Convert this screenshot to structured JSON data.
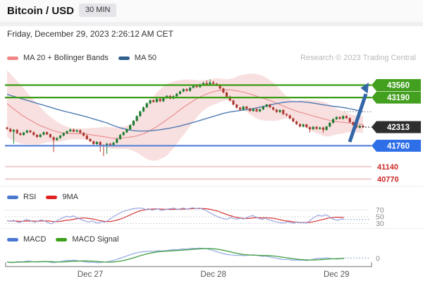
{
  "header": {
    "title": "Bitcoin / USD",
    "timeframe": "30 MIN",
    "datetime": "Friday, December 29, 2023 2:26:12 AM CET",
    "watermark": "Research © 2023 Trading Central"
  },
  "legends": {
    "main": [
      {
        "label": "MA 20 + Bollinger Bands",
        "color": "#ef8585"
      },
      {
        "label": "MA 50",
        "color": "#31608f"
      }
    ],
    "rsi": [
      {
        "label": "RSI",
        "color": "#4a77cf"
      },
      {
        "label": "9MA",
        "color": "#e02222"
      }
    ],
    "macd": [
      {
        "label": "MACD",
        "color": "#4a77cf"
      },
      {
        "label": "MACD Signal",
        "color": "#3da01a"
      }
    ]
  },
  "colors": {
    "candle_up": "#1e7d32",
    "candle_down": "#ad3a32",
    "ma20": "#e89090",
    "ma50": "#4f7bb2",
    "boll_fill": "#f6d3d3",
    "level_green": "#3a9d15",
    "level_blue": "#5f86d8",
    "level_red_line": "#e9a9a9",
    "level_red_text": "#cc2626",
    "badge_green": "#43a01f",
    "badge_black": "#2e2e2e",
    "badge_blue": "#2e6fe8",
    "badge_text": "#ffffff",
    "arrow": "#3467a8",
    "rsi_line": "#8f9fdf",
    "rsi_ma": "#d63434",
    "macd_line": "#8fa8df",
    "macd_signal": "#4ba34b",
    "grid_dot": "#c9c9c9",
    "axis": "#9a9a9a",
    "axis_text": "#555555",
    "panel_label": "#8a8a8a",
    "ext_blue": "#7f99d9",
    "ext_gray": "#999999",
    "ext_black": "#222222"
  },
  "levels": {
    "resistance": [
      43560,
      43190
    ],
    "last_price": 42313,
    "support_blue": 41760,
    "support_red": [
      41140,
      40770
    ]
  },
  "rsi_ticks": [
    70,
    50,
    30
  ],
  "macd_zero_label": "0",
  "x_ticks": [
    {
      "label": "Dec 27",
      "i": 25
    },
    {
      "label": "Dec 28",
      "i": 62
    },
    {
      "label": "Dec 29",
      "i": 99
    }
  ],
  "chart_data": {
    "type": "candlestick-multi-panel",
    "symbol": "Bitcoin / USD",
    "interval": "30 MIN",
    "price_panel": {
      "open0": 42300,
      "pre_closes": [
        43700,
        43685,
        43670,
        43655,
        43640,
        43625,
        43610,
        43595,
        43580,
        43565,
        43550,
        43535,
        43520,
        43505,
        43490,
        43475,
        43460,
        43445,
        43430,
        43415,
        43400,
        43385,
        43370,
        43355,
        43340,
        43325,
        43310,
        43295,
        43280,
        43265,
        43250,
        43850,
        43760,
        43670,
        43580,
        43490,
        43400,
        43310,
        43220,
        43130,
        43040,
        42950,
        42860,
        42770,
        42680,
        42590,
        42500,
        42440,
        42400,
        42370
      ],
      "closes": [
        42260,
        42180,
        42230,
        42130,
        42080,
        42150,
        42210,
        42160,
        42080,
        42020,
        42090,
        42160,
        42100,
        42010,
        41930,
        41990,
        42060,
        42130,
        42190,
        42240,
        42180,
        42220,
        42140,
        42060,
        41960,
        41890,
        41810,
        41870,
        41780,
        41740,
        41820,
        41760,
        41850,
        41960,
        42080,
        42160,
        42250,
        42370,
        42500,
        42640,
        42780,
        42900,
        43020,
        43110,
        43060,
        43150,
        43080,
        43180,
        43240,
        43160,
        43230,
        43300,
        43370,
        43440,
        43390,
        43480,
        43550,
        43500,
        43580,
        43620,
        43560,
        43640,
        43600,
        43560,
        43460,
        43340,
        43220,
        43100,
        42980,
        42890,
        42830,
        42920,
        42860,
        42790,
        42850,
        42780,
        42840,
        42920,
        42980,
        42900,
        42830,
        42760,
        42820,
        42700,
        42660,
        42570,
        42480,
        42400,
        42330,
        42390,
        42310,
        42250,
        42320,
        42260,
        42300,
        42230,
        42330,
        42440,
        42550,
        42610,
        42560,
        42640,
        42580,
        42460,
        42380,
        42300,
        42350,
        42313
      ],
      "wick_default": 25,
      "wick_overrides": {
        "2": {
          "low": 41820
        },
        "14": {
          "low": 41570
        },
        "28": {
          "low": 41580
        },
        "29": {
          "low": 41450
        },
        "30": {
          "low": 41520
        },
        "59": {
          "high": 43660
        },
        "60": {
          "high": 43700
        },
        "61": {
          "high": 43730
        },
        "62": {
          "high": 43690
        },
        "91": {
          "low": 42150
        },
        "95": {
          "low": 42140
        }
      },
      "indicators": [
        "MA 20",
        "Bollinger Bands (20, 2)",
        "MA 50"
      ]
    },
    "rsi_panel": {
      "levels": [
        70,
        50,
        30
      ],
      "values": [
        38,
        36,
        40,
        35,
        33,
        37,
        42,
        40,
        36,
        34,
        38,
        41,
        37,
        33,
        29,
        34,
        39,
        44,
        48,
        52,
        49,
        53,
        48,
        44,
        40,
        37,
        34,
        38,
        33,
        31,
        36,
        34,
        39,
        45,
        52,
        57,
        62,
        66,
        69,
        72,
        74,
        75,
        76,
        75,
        72,
        74,
        70,
        72,
        74,
        69,
        71,
        73,
        74,
        76,
        72,
        74,
        76,
        73,
        75,
        77,
        74,
        76,
        73,
        70,
        64,
        59,
        54,
        50,
        46,
        44,
        43,
        48,
        45,
        43,
        46,
        43,
        47,
        51,
        54,
        49,
        45,
        42,
        46,
        41,
        39,
        36,
        34,
        32,
        31,
        35,
        33,
        31,
        35,
        32,
        34,
        31,
        38,
        45,
        51,
        55,
        52,
        56,
        53,
        45,
        42,
        39,
        44,
        42
      ],
      "smoothing": "9MA"
    },
    "macd_panel": {
      "zero": 0,
      "values": [
        -55,
        -60,
        -58,
        -52,
        -48,
        -50,
        -42,
        -38,
        -45,
        -52,
        -55,
        -48,
        -42,
        -50,
        -58,
        -62,
        -55,
        -45,
        -35,
        -28,
        -30,
        -25,
        -30,
        -38,
        -45,
        -52,
        -58,
        -55,
        -60,
        -62,
        -58,
        -55,
        -48,
        -38,
        -25,
        -10,
        5,
        20,
        38,
        55,
        70,
        82,
        92,
        100,
        104,
        108,
        105,
        110,
        115,
        112,
        116,
        120,
        126,
        133,
        130,
        136,
        142,
        140,
        146,
        152,
        150,
        155,
        152,
        148,
        138,
        125,
        110,
        95,
        80,
        68,
        58,
        55,
        50,
        44,
        48,
        42,
        45,
        50,
        54,
        48,
        40,
        32,
        36,
        28,
        18,
        8,
        -2,
        -10,
        -18,
        -14,
        -20,
        -26,
        -22,
        -28,
        -24,
        -30,
        -24,
        -14,
        -4,
        4,
        0,
        8,
        4,
        -2,
        -6,
        -10,
        -2,
        6
      ],
      "signal": "SMA9 of MACD"
    },
    "x_categories": [
      "Dec 27",
      "Dec 28",
      "Dec 29"
    ]
  }
}
